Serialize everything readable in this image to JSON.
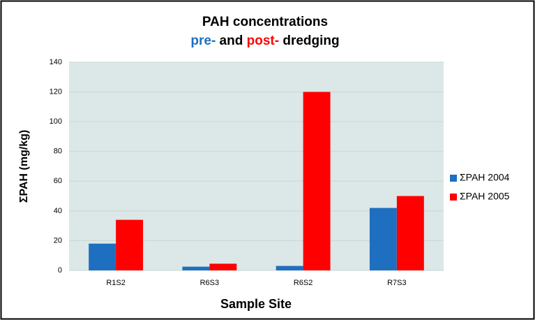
{
  "chart_data": {
    "type": "bar",
    "title": "PAH concentrations",
    "subtitle_parts": [
      {
        "text": "pre-",
        "color": "#1f6fc0"
      },
      {
        "text": " and ",
        "color": "#000000"
      },
      {
        "text": "post-",
        "color": "#ff0000"
      },
      {
        "text": " dredging",
        "color": "#000000"
      }
    ],
    "x_label": "Sample Site",
    "y_label": "ΣPAH (mg/kg)",
    "categories": [
      "R1S2",
      "R6S3",
      "R6S2",
      "R7S3"
    ],
    "series": [
      {
        "name": "ΣPAH 2004",
        "color": "#1f6fc0",
        "values": [
          18,
          2.5,
          3,
          42
        ]
      },
      {
        "name": "ΣPAH 2005",
        "color": "#ff0000",
        "values": [
          34,
          4.5,
          120,
          50
        ]
      }
    ],
    "ylim": [
      0,
      140
    ],
    "yticks": [
      0,
      20,
      40,
      60,
      80,
      100,
      120,
      140
    ],
    "grid": true,
    "legend": "right"
  }
}
